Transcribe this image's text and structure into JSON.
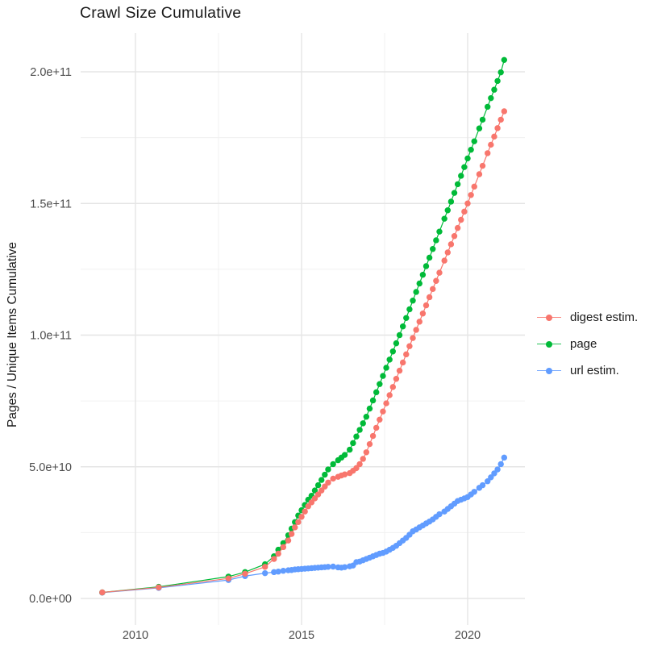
{
  "title": "Crawl Size Cumulative",
  "colors": {
    "background": "#ffffff",
    "title_text": "#1a1a1a",
    "axis_tick_text": "#4d4d4d",
    "grid_major": "#e5e5e5",
    "grid_minor": "#f0f0f0",
    "digest": "#F8766D",
    "page": "#00BA38",
    "url": "#619CFF"
  },
  "legend": {
    "items": [
      {
        "label": "digest estim.",
        "color": "#F8766D",
        "icon": "line-with-point-key-icon"
      },
      {
        "label": "page",
        "color": "#00BA38",
        "icon": "line-with-point-key-icon"
      },
      {
        "label": "url estim.",
        "color": "#619CFF",
        "icon": "line-with-point-key-icon"
      }
    ]
  },
  "chart_data": {
    "type": "scatter",
    "subtype": "cumulative points joined by thin lines",
    "title": "Crawl Size Cumulative",
    "xlabel": "",
    "ylabel": "Pages / Unique Items Cumulative",
    "values_unit": "items x 1e9 (billions); axis shows scientific notation",
    "grid": true,
    "legend_position": "right-middle",
    "xlim": [
      2008.4,
      2021.7
    ],
    "ylim_e9": [
      0,
      210
    ],
    "x_ticks": {
      "major": [
        {
          "label": "2010",
          "value": 2010
        },
        {
          "label": "2015",
          "value": 2015
        },
        {
          "label": "2020",
          "value": 2020
        }
      ],
      "minor": [
        2012.5,
        2017.5
      ]
    },
    "y_ticks": {
      "major": [
        {
          "label": "0.0e+00",
          "value_e9": 0
        },
        {
          "label": "5.0e+10",
          "value_e9": 50
        },
        {
          "label": "1.0e+11",
          "value_e9": 100
        },
        {
          "label": "1.5e+11",
          "value_e9": 150
        },
        {
          "label": "2.0e+11",
          "value_e9": 200
        }
      ],
      "minor_e9": [
        25,
        75,
        125,
        175
      ]
    },
    "x": [
      2009.0,
      2010.7,
      2012.8,
      2013.3,
      2013.9,
      2014.17,
      2014.3,
      2014.45,
      2014.6,
      2014.7,
      2014.8,
      2014.9,
      2015.0,
      2015.1,
      2015.2,
      2015.3,
      2015.4,
      2015.5,
      2015.6,
      2015.7,
      2015.8,
      2015.95,
      2016.1,
      2016.2,
      2016.3,
      2016.45,
      2016.55,
      2016.65,
      2016.75,
      2016.85,
      2016.95,
      2017.05,
      2017.15,
      2017.25,
      2017.35,
      2017.45,
      2017.55,
      2017.65,
      2017.75,
      2017.85,
      2017.95,
      2018.05,
      2018.15,
      2018.25,
      2018.35,
      2018.45,
      2018.55,
      2018.65,
      2018.75,
      2018.85,
      2018.95,
      2019.05,
      2019.15,
      2019.3,
      2019.4,
      2019.5,
      2019.6,
      2019.7,
      2019.8,
      2019.9,
      2020.0,
      2020.1,
      2020.2,
      2020.35,
      2020.45,
      2020.6,
      2020.7,
      2020.8,
      2020.9,
      2021.0,
      2021.1
    ],
    "series": [
      {
        "name": "digest estim.",
        "color": "#F8766D",
        "values_e9": [
          2.3,
          4.2,
          7.6,
          9.4,
          12,
          15,
          17,
          19.5,
          22,
          24.5,
          27,
          29,
          31,
          33,
          35,
          36.5,
          38,
          39.5,
          41,
          42.5,
          44,
          45.5,
          46.2,
          46.7,
          47.1,
          47.6,
          48.5,
          49.5,
          51,
          53,
          55.5,
          58.6,
          61.7,
          64.8,
          67.9,
          71,
          74.1,
          77.2,
          80.3,
          83.4,
          86.5,
          89.6,
          92.7,
          95.8,
          98.9,
          102,
          105.1,
          108.2,
          111.3,
          114.4,
          117.5,
          120.6,
          123.7,
          128.3,
          131.4,
          134.5,
          137.6,
          140.7,
          143.8,
          146.9,
          150,
          153.2,
          156.4,
          161.1,
          164.3,
          169.1,
          172.3,
          175.4,
          178.6,
          181.8,
          185
        ]
      },
      {
        "name": "page",
        "color": "#00BA38",
        "values_e9": [
          2.3,
          4.4,
          8.3,
          10,
          13,
          16,
          18.5,
          21,
          24,
          26.5,
          29,
          31.5,
          33.5,
          35.5,
          37.5,
          39,
          41,
          43,
          45,
          47,
          49,
          51,
          52.5,
          53.5,
          54.5,
          56.5,
          59,
          61.5,
          64,
          66.5,
          69,
          72.1,
          75.2,
          78.3,
          81.4,
          84.5,
          87.6,
          90.7,
          93.8,
          96.9,
          100,
          103.3,
          106.5,
          109.8,
          113.1,
          116.4,
          119.6,
          122.9,
          126.2,
          129.4,
          132.7,
          136,
          139.3,
          144.2,
          147.4,
          150.7,
          154,
          157.3,
          160.5,
          163.8,
          167.1,
          170.4,
          173.6,
          178.5,
          181.8,
          186.7,
          190,
          193.2,
          196.5,
          199.8,
          204.5
        ]
      },
      {
        "name": "url estim.",
        "color": "#619CFF",
        "values_e9": [
          2.2,
          4.0,
          7.0,
          8.5,
          9.6,
          10,
          10.2,
          10.5,
          10.7,
          10.8,
          11,
          11.1,
          11.2,
          11.3,
          11.4,
          11.5,
          11.6,
          11.7,
          11.8,
          11.9,
          12,
          12.1,
          11.8,
          11.7,
          11.9,
          12.2,
          12.5,
          13.8,
          14,
          14.5,
          15,
          15.5,
          16,
          16.5,
          17,
          17.3,
          17.8,
          18.5,
          19.2,
          20,
          21,
          22,
          23,
          24.2,
          25.5,
          26.2,
          27,
          27.7,
          28.5,
          29.2,
          30,
          31,
          32,
          33,
          34,
          35,
          36,
          37,
          37.5,
          38,
          38.5,
          39.5,
          40.5,
          42,
          43,
          44.5,
          46,
          47.5,
          49,
          51,
          53.5
        ]
      }
    ],
    "draw_order": [
      "url estim.",
      "page",
      "digest estim."
    ]
  }
}
